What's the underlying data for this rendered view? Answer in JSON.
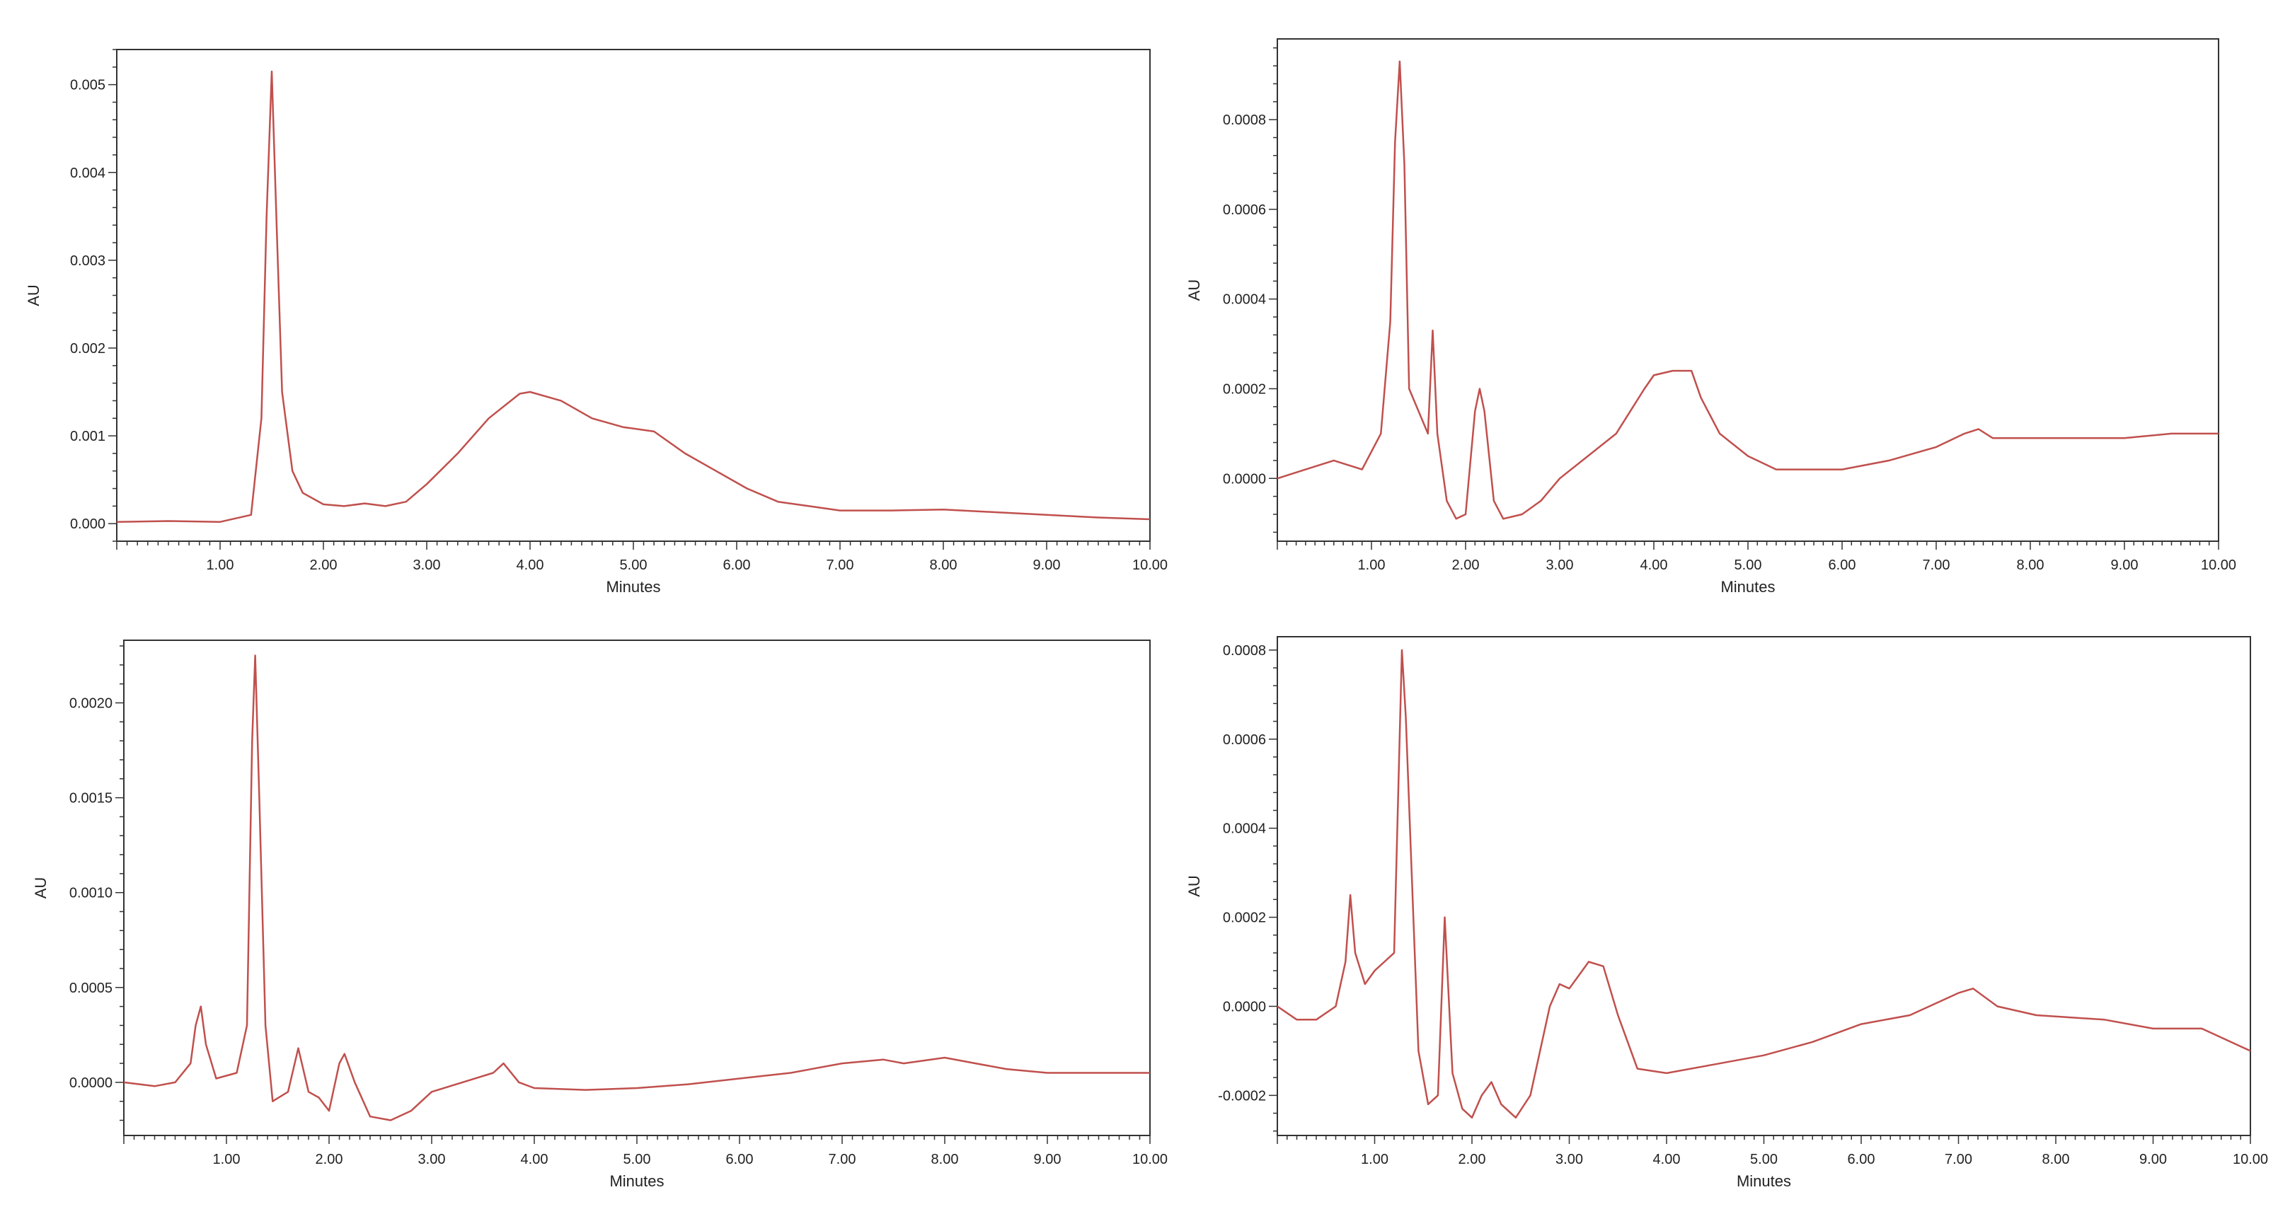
{
  "chart_data": [
    {
      "type": "line",
      "xlabel": "Minutes",
      "ylabel": "AU",
      "xlim": [
        0,
        10
      ],
      "ylim": [
        -0.0002,
        0.0054
      ],
      "xticks": [
        "1.00",
        "2.00",
        "3.00",
        "4.00",
        "5.00",
        "6.00",
        "7.00",
        "8.00",
        "9.00",
        "10.00"
      ],
      "yticks": [
        "0.000",
        "0.001",
        "0.002",
        "0.003",
        "0.004",
        "0.005"
      ],
      "x": [
        0,
        0.5,
        1.0,
        1.3,
        1.4,
        1.45,
        1.5,
        1.55,
        1.6,
        1.7,
        1.8,
        2.0,
        2.2,
        2.4,
        2.6,
        2.8,
        3.0,
        3.3,
        3.6,
        3.9,
        4.0,
        4.3,
        4.6,
        4.9,
        5.2,
        5.5,
        5.8,
        6.1,
        6.4,
        6.7,
        7.0,
        7.5,
        8.0,
        8.5,
        9.0,
        9.5,
        10.0
      ],
      "y": [
        2e-05,
        3e-05,
        2e-05,
        0.0001,
        0.0012,
        0.0035,
        0.00515,
        0.0033,
        0.0015,
        0.0006,
        0.00035,
        0.00022,
        0.0002,
        0.00023,
        0.0002,
        0.00025,
        0.00045,
        0.0008,
        0.0012,
        0.00148,
        0.0015,
        0.0014,
        0.0012,
        0.0011,
        0.00105,
        0.0008,
        0.0006,
        0.0004,
        0.00025,
        0.0002,
        0.00015,
        0.00015,
        0.00016,
        0.00013,
        0.0001,
        7e-05,
        5e-05
      ],
      "grid": false,
      "color": "#c0504d"
    },
    {
      "type": "line",
      "xlabel": "Minutes",
      "ylabel": "AU",
      "xlim": [
        0,
        10
      ],
      "ylim": [
        -0.00014,
        0.00098
      ],
      "xticks": [
        "1.00",
        "2.00",
        "3.00",
        "4.00",
        "5.00",
        "6.00",
        "7.00",
        "8.00",
        "9.00",
        "10.00"
      ],
      "yticks": [
        "0.0000",
        "0.0002",
        "0.0004",
        "0.0006",
        "0.0008"
      ],
      "x": [
        0,
        0.3,
        0.6,
        0.9,
        1.1,
        1.2,
        1.25,
        1.3,
        1.35,
        1.4,
        1.5,
        1.6,
        1.65,
        1.7,
        1.8,
        1.9,
        2.0,
        2.1,
        2.15,
        2.2,
        2.3,
        2.4,
        2.6,
        2.8,
        3.0,
        3.3,
        3.6,
        3.9,
        4.0,
        4.2,
        4.4,
        4.5,
        4.7,
        5.0,
        5.3,
        5.6,
        6.0,
        6.5,
        7.0,
        7.3,
        7.45,
        7.6,
        8.0,
        8.5,
        9.0,
        9.5,
        10.0
      ],
      "y": [
        0.0,
        2e-05,
        4e-05,
        2e-05,
        0.0001,
        0.00035,
        0.00075,
        0.00093,
        0.0007,
        0.0002,
        0.00015,
        0.0001,
        0.00033,
        0.0001,
        -5e-05,
        -9e-05,
        -8e-05,
        0.00015,
        0.0002,
        0.00015,
        -5e-05,
        -9e-05,
        -8e-05,
        -5e-05,
        0.0,
        5e-05,
        0.0001,
        0.0002,
        0.00023,
        0.00024,
        0.00024,
        0.00018,
        0.0001,
        5e-05,
        2e-05,
        2e-05,
        2e-05,
        4e-05,
        7e-05,
        0.0001,
        0.00011,
        9e-05,
        9e-05,
        9e-05,
        9e-05,
        0.0001,
        0.0001
      ],
      "grid": false,
      "color": "#c0504d"
    },
    {
      "type": "line",
      "xlabel": "Minutes",
      "ylabel": "AU",
      "xlim": [
        0,
        10
      ],
      "ylim": [
        -0.00028,
        0.00233
      ],
      "xticks": [
        "1.00",
        "2.00",
        "3.00",
        "4.00",
        "5.00",
        "6.00",
        "7.00",
        "8.00",
        "9.00",
        "10.00"
      ],
      "yticks": [
        "0.0000",
        "0.0005",
        "0.0010",
        "0.0015",
        "0.0020"
      ],
      "x": [
        0,
        0.3,
        0.5,
        0.65,
        0.7,
        0.75,
        0.8,
        0.9,
        1.1,
        1.2,
        1.25,
        1.28,
        1.32,
        1.38,
        1.45,
        1.6,
        1.7,
        1.8,
        1.9,
        2.0,
        2.1,
        2.15,
        2.25,
        2.4,
        2.6,
        2.8,
        3.0,
        3.3,
        3.6,
        3.7,
        3.85,
        4.0,
        4.5,
        5.0,
        5.5,
        6.0,
        6.5,
        7.0,
        7.4,
        7.6,
        8.0,
        8.3,
        8.6,
        9.0,
        9.5,
        10.0
      ],
      "y": [
        0.0,
        -2e-05,
        0.0,
        0.0001,
        0.0003,
        0.0004,
        0.0002,
        2e-05,
        5e-05,
        0.0003,
        0.0018,
        0.00225,
        0.0015,
        0.0003,
        -0.0001,
        -5e-05,
        0.00018,
        -5e-05,
        -8e-05,
        -0.00015,
        0.0001,
        0.00015,
        0.0,
        -0.00018,
        -0.0002,
        -0.00015,
        -5e-05,
        0.0,
        5e-05,
        0.0001,
        0.0,
        -3e-05,
        -4e-05,
        -3e-05,
        -1e-05,
        2e-05,
        5e-05,
        0.0001,
        0.00012,
        0.0001,
        0.00013,
        0.0001,
        7e-05,
        5e-05,
        5e-05,
        5e-05
      ],
      "grid": false,
      "color": "#c0504d"
    },
    {
      "type": "line",
      "xlabel": "Minutes",
      "ylabel": "AU",
      "xlim": [
        0,
        10
      ],
      "ylim": [
        -0.00029,
        0.00083
      ],
      "xticks": [
        "1.00",
        "2.00",
        "3.00",
        "4.00",
        "5.00",
        "6.00",
        "7.00",
        "8.00",
        "9.00",
        "10.00"
      ],
      "yticks": [
        "-0.0002",
        "0.0000",
        "0.0002",
        "0.0004",
        "0.0006",
        "0.0008"
      ],
      "x": [
        0,
        0.2,
        0.4,
        0.6,
        0.7,
        0.75,
        0.8,
        0.9,
        1.0,
        1.1,
        1.2,
        1.28,
        1.32,
        1.38,
        1.45,
        1.55,
        1.65,
        1.72,
        1.8,
        1.9,
        2.0,
        2.1,
        2.2,
        2.3,
        2.45,
        2.6,
        2.8,
        2.9,
        3.0,
        3.2,
        3.35,
        3.5,
        3.7,
        4.0,
        4.5,
        5.0,
        5.5,
        6.0,
        6.5,
        7.0,
        7.15,
        7.4,
        7.8,
        8.5,
        9.0,
        9.5,
        10.0
      ],
      "y": [
        0.0,
        -3e-05,
        -3e-05,
        0.0,
        0.0001,
        0.00025,
        0.00012,
        5e-05,
        8e-05,
        0.0001,
        0.00012,
        0.0008,
        0.00065,
        0.0003,
        -0.0001,
        -0.00022,
        -0.0002,
        0.0002,
        -0.00015,
        -0.00023,
        -0.00025,
        -0.0002,
        -0.00017,
        -0.00022,
        -0.00025,
        -0.0002,
        0.0,
        5e-05,
        4e-05,
        0.0001,
        9e-05,
        -2e-05,
        -0.00014,
        -0.00015,
        -0.00013,
        -0.00011,
        -8e-05,
        -4e-05,
        -2e-05,
        3e-05,
        4e-05,
        0.0,
        -2e-05,
        -3e-05,
        -5e-05,
        -5e-05,
        -0.0001
      ],
      "grid": false,
      "color": "#c0504d"
    }
  ]
}
